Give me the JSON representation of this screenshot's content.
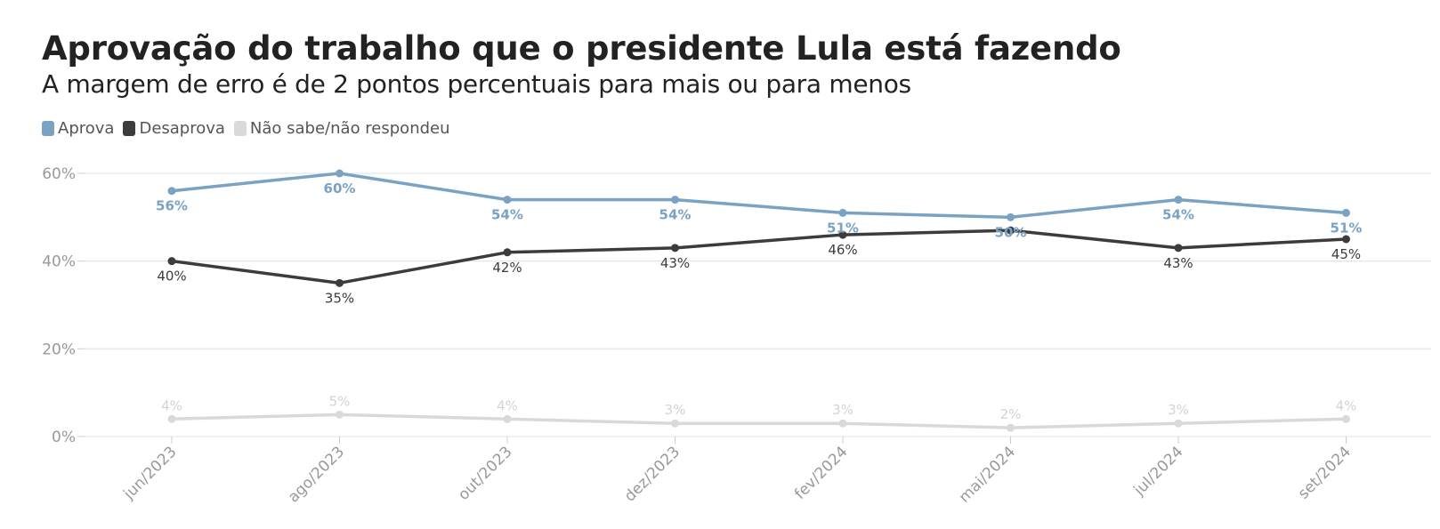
{
  "chart_data": {
    "type": "line",
    "title": "Aprovação do trabalho que o presidente Lula está fazendo",
    "subtitle": "A margem de erro é de 2 pontos percentuais para mais ou para menos",
    "categories": [
      "jun/2023",
      "ago/2023",
      "out/2023",
      "dez/2023",
      "fev/2024",
      "mai/2024",
      "jul/2024",
      "set/2024"
    ],
    "ylim": [
      0,
      60
    ],
    "yticks": [
      0,
      20,
      40,
      60
    ],
    "ytick_labels": [
      "0%",
      "20%",
      "40%",
      "60%"
    ],
    "grid": true,
    "legend_placement": "top-left",
    "series": [
      {
        "name": "Aprova",
        "color": "#7aa2c3",
        "values": [
          56,
          60,
          54,
          54,
          51,
          50,
          54,
          51
        ],
        "labels": [
          "56%",
          "60%",
          "54%",
          "54%",
          "51%",
          "50%",
          "54%",
          "51%"
        ],
        "label_position": "below"
      },
      {
        "name": "Desaprova",
        "color": "#3c3c3c",
        "values": [
          40,
          35,
          42,
          43,
          46,
          47,
          43,
          45
        ],
        "labels": [
          "40%",
          "35%",
          "42%",
          "43%",
          "46%",
          "",
          "43%",
          "45%"
        ],
        "label_position": "below"
      },
      {
        "name": "Não sabe/não respondeu",
        "color": "#d9d9d9",
        "values": [
          4,
          5,
          4,
          3,
          3,
          2,
          3,
          4
        ],
        "labels": [
          "4%",
          "5%",
          "4%",
          "3%",
          "3%",
          "2%",
          "3%",
          "4%"
        ],
        "label_position": "above"
      }
    ]
  }
}
